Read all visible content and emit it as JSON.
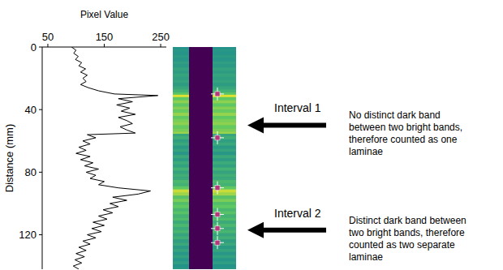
{
  "chart_data": {
    "type": "line",
    "orientation": "horizontal",
    "x_label": "Pixel Value",
    "y_label": "Distance (mm)",
    "xlim": [
      40,
      260
    ],
    "xticks": [
      50,
      150,
      250
    ],
    "ylim": [
      0,
      142
    ],
    "yticks": [
      0,
      40,
      80,
      120
    ],
    "color": "#000000",
    "distance": [
      0,
      2,
      4,
      6,
      8,
      10,
      12,
      14,
      16,
      18,
      20,
      22,
      24,
      26,
      28,
      30,
      31,
      33,
      35,
      37,
      39,
      41,
      43,
      45,
      47,
      49,
      51,
      53,
      55,
      56,
      58,
      60,
      62,
      64,
      66,
      68,
      70,
      72,
      74,
      76,
      78,
      80,
      82,
      84,
      86,
      88,
      90,
      92,
      94,
      96,
      98,
      100,
      102,
      104,
      106,
      108,
      110,
      112,
      114,
      116,
      118,
      120,
      122,
      124,
      126,
      128,
      130,
      132,
      134,
      136,
      138,
      140,
      142
    ],
    "values": [
      92,
      100,
      96,
      104,
      99,
      110,
      105,
      117,
      108,
      120,
      112,
      118,
      108,
      122,
      140,
      168,
      245,
      175,
      200,
      172,
      195,
      180,
      205,
      175,
      190,
      200,
      178,
      190,
      205,
      120,
      135,
      112,
      125,
      105,
      118,
      100,
      125,
      108,
      130,
      115,
      140,
      118,
      135,
      125,
      150,
      140,
      175,
      232,
      210,
      165,
      190,
      160,
      175,
      148,
      165,
      140,
      155,
      130,
      150,
      128,
      145,
      120,
      135,
      112,
      125,
      105,
      118,
      100,
      115,
      98,
      110,
      95,
      105
    ],
    "lamina_picks": [
      30,
      58,
      90,
      107,
      116,
      125
    ],
    "annotations": [
      {
        "label": "Interval 1",
        "y": 50,
        "lines": [
          "No distinct dark band",
          "between two bright bands,",
          "therefore counted as one",
          "laminae"
        ]
      },
      {
        "label": "Interval 2",
        "y": 117,
        "lines": [
          "Distinct dark band between",
          "two bright bands, therefore",
          "counted as two separate",
          "laminae"
        ]
      }
    ]
  }
}
